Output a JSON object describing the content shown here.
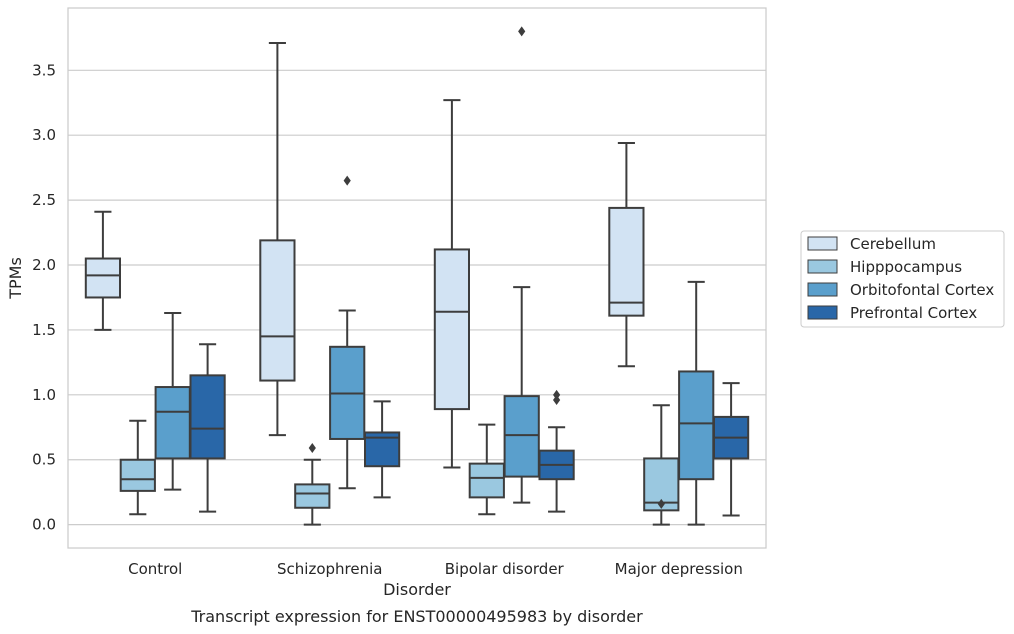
{
  "chart_data": {
    "type": "box",
    "caption": "Transcript expression for ENST00000495983 by disorder",
    "xlabel": "Disorder",
    "ylabel": "TPMs",
    "ylim": [
      -0.18,
      3.98
    ],
    "yticks": [
      "0.0",
      "0.5",
      "1.0",
      "1.5",
      "2.0",
      "2.5",
      "3.0",
      "3.5"
    ],
    "yticks_values": [
      0,
      0.5,
      1,
      1.5,
      2,
      2.5,
      3,
      3.5
    ],
    "categories": [
      "Control",
      "Schizophrenia",
      "Bipolar disorder",
      "Major depression"
    ],
    "grid": "horizontal",
    "legend_position": "right",
    "series": [
      {
        "name": "Cerebellum",
        "color": "#d2e3f3",
        "boxes": [
          {
            "min": 1.5,
            "q1": 1.75,
            "median": 1.92,
            "q3": 2.05,
            "max": 2.41,
            "outliers": []
          },
          {
            "min": 0.69,
            "q1": 1.11,
            "median": 1.45,
            "q3": 2.19,
            "max": 3.71,
            "outliers": []
          },
          {
            "min": 0.44,
            "q1": 0.89,
            "median": 1.64,
            "q3": 2.12,
            "max": 3.27,
            "outliers": []
          },
          {
            "min": 1.22,
            "q1": 1.61,
            "median": 1.71,
            "q3": 2.44,
            "max": 2.94,
            "outliers": []
          }
        ]
      },
      {
        "name": "Hipppocampus",
        "color": "#9ac8e0",
        "boxes": [
          {
            "min": 0.08,
            "q1": 0.26,
            "median": 0.35,
            "q3": 0.5,
            "max": 0.8,
            "outliers": []
          },
          {
            "min": 0.0,
            "q1": 0.13,
            "median": 0.24,
            "q3": 0.31,
            "max": 0.5,
            "outliers": [
              0.59
            ]
          },
          {
            "min": 0.08,
            "q1": 0.21,
            "median": 0.36,
            "q3": 0.47,
            "max": 0.77,
            "outliers": []
          },
          {
            "min": 0.0,
            "q1": 0.11,
            "median": 0.17,
            "q3": 0.51,
            "max": 0.92,
            "outliers": [
              0.16
            ]
          }
        ]
      },
      {
        "name": "Orbitofontal Cortex",
        "color": "#5a9fcc",
        "boxes": [
          {
            "min": 0.27,
            "q1": 0.51,
            "median": 0.87,
            "q3": 1.06,
            "max": 1.63,
            "outliers": []
          },
          {
            "min": 0.28,
            "q1": 0.66,
            "median": 1.01,
            "q3": 1.37,
            "max": 1.65,
            "outliers": [
              2.65
            ]
          },
          {
            "min": 0.17,
            "q1": 0.37,
            "median": 0.69,
            "q3": 0.99,
            "max": 1.83,
            "outliers": [
              3.8
            ]
          },
          {
            "min": 0.0,
            "q1": 0.35,
            "median": 0.78,
            "q3": 1.18,
            "max": 1.87,
            "outliers": []
          }
        ]
      },
      {
        "name": "Prefrontal Cortex",
        "color": "#2967a8",
        "boxes": [
          {
            "min": 0.1,
            "q1": 0.51,
            "median": 0.74,
            "q3": 1.15,
            "max": 1.39,
            "outliers": []
          },
          {
            "min": 0.21,
            "q1": 0.45,
            "median": 0.67,
            "q3": 0.71,
            "max": 0.95,
            "outliers": []
          },
          {
            "min": 0.1,
            "q1": 0.35,
            "median": 0.46,
            "q3": 0.57,
            "max": 0.75,
            "outliers": [
              0.96,
              1.0
            ]
          },
          {
            "min": 0.07,
            "q1": 0.51,
            "median": 0.67,
            "q3": 0.83,
            "max": 1.09,
            "outliers": []
          }
        ]
      }
    ]
  }
}
